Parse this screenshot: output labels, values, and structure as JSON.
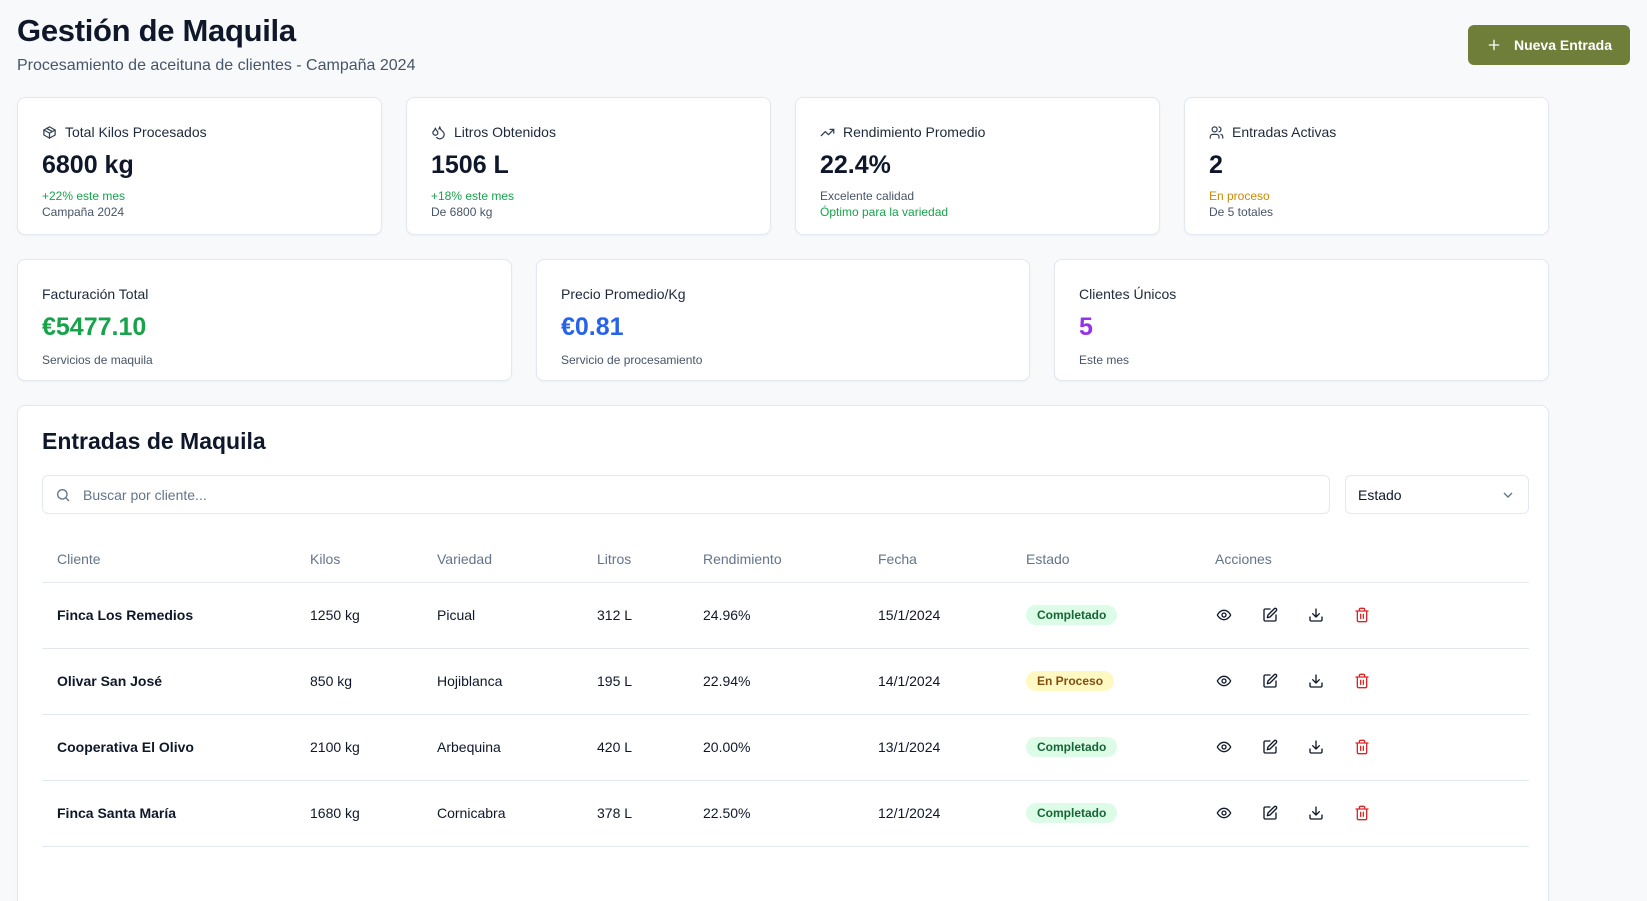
{
  "header": {
    "title": "Gestión de Maquila",
    "subtitle": "Procesamiento de aceituna de clientes - Campaña 2024",
    "new_button_label": "Nueva Entrada"
  },
  "stats": [
    {
      "label": "Total Kilos Procesados",
      "icon": "package-icon",
      "value": "6800 kg",
      "line1": "+22% este mes",
      "line2": "Campaña 2024"
    },
    {
      "label": "Litros Obtenidos",
      "icon": "droplets-icon",
      "value": "1506 L",
      "line1": "+18% este mes",
      "line2": "De 6800 kg"
    },
    {
      "label": "Rendimiento Promedio",
      "icon": "trending-up-icon",
      "value": "22.4%",
      "line1": "Excelente calidad",
      "line2": "Óptimo para la variedad"
    },
    {
      "label": "Entradas Activas",
      "icon": "users-icon",
      "value": "2",
      "line1": "En proceso",
      "line2": "De 5 totales"
    }
  ],
  "finance": [
    {
      "label": "Facturación Total",
      "value": "€5477.10",
      "sub": "Servicios de maquila",
      "color": "#16a34a"
    },
    {
      "label": "Precio Promedio/Kg",
      "value": "€0.81",
      "sub": "Servicio de procesamiento",
      "color": "#2563eb"
    },
    {
      "label": "Clientes Únicos",
      "value": "5",
      "sub": "Este mes",
      "color": "#9333ea"
    }
  ],
  "entries": {
    "title": "Entradas de Maquila",
    "search_placeholder": "Buscar por cliente...",
    "status_filter": "Estado",
    "columns": [
      "Cliente",
      "Kilos",
      "Variedad",
      "Litros",
      "Rendimiento",
      "Fecha",
      "Estado",
      "Acciones"
    ],
    "rows": [
      {
        "cliente": "Finca Los Remedios",
        "kilos": "1250 kg",
        "variedad": "Picual",
        "litros": "312 L",
        "rendimiento": "24.96%",
        "fecha": "15/1/2024",
        "estado": "Completado"
      },
      {
        "cliente": "Olivar San José",
        "kilos": "850 kg",
        "variedad": "Hojiblanca",
        "litros": "195 L",
        "rendimiento": "22.94%",
        "fecha": "14/1/2024",
        "estado": "En Proceso"
      },
      {
        "cliente": "Cooperativa El Olivo",
        "kilos": "2100 kg",
        "variedad": "Arbequina",
        "litros": "420 L",
        "rendimiento": "20.00%",
        "fecha": "13/1/2024",
        "estado": "Completado"
      },
      {
        "cliente": "Finca Santa María",
        "kilos": "1680 kg",
        "variedad": "Cornicabra",
        "litros": "378 L",
        "rendimiento": "22.50%",
        "fecha": "12/1/2024",
        "estado": "Completado"
      }
    ]
  },
  "colors": {
    "accent": "#6f7f3a",
    "completed_bg": "#dcfce7",
    "in_process_bg": "#fef9c3",
    "delete": "#dc2626"
  }
}
